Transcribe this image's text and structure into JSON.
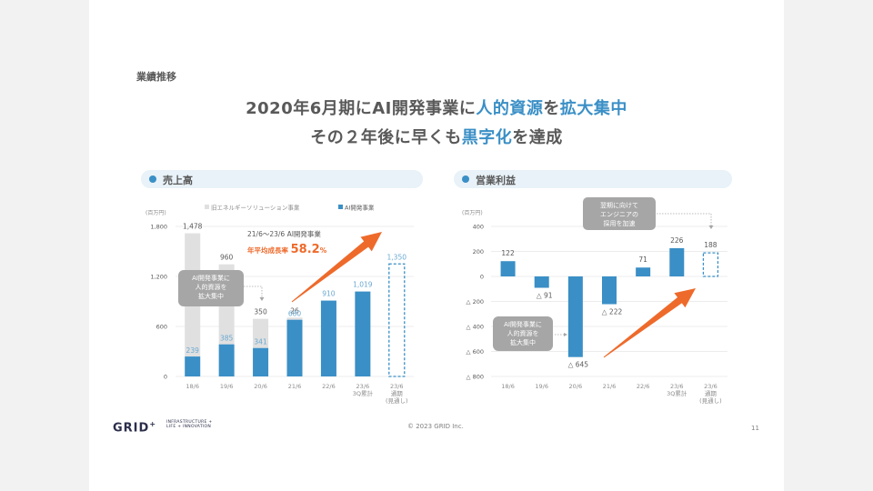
{
  "section_label": "業績推移",
  "headline": {
    "line1": [
      {
        "text": "2020年6月期にAI開発事業に",
        "highlight": false
      },
      {
        "text": "人的資源",
        "highlight": true
      },
      {
        "text": "を",
        "highlight": false
      },
      {
        "text": "拡大集中",
        "highlight": true
      }
    ],
    "line2": [
      {
        "text": "その２年後に早くも",
        "highlight": false
      },
      {
        "text": "黒字化",
        "highlight": true
      },
      {
        "text": "を達成",
        "highlight": false
      }
    ]
  },
  "colors": {
    "blue": "#3a8fc6",
    "grey_bar": "#e0e0e0",
    "orange": "#ee6a2b",
    "callout_bg": "#a6a6a6",
    "panel_header_bg": "#e8f2f8"
  },
  "panels": {
    "left_title": "売上高",
    "right_title": "営業利益"
  },
  "chart_data": [
    {
      "type": "bar",
      "stacked": true,
      "title": "売上高",
      "unit_label": "(百万円)",
      "categories": [
        "18/6",
        "19/6",
        "20/6",
        "21/6",
        "22/6",
        "23/6\n3Q累計",
        "23/6\n通期\n(見通し)"
      ],
      "series": [
        {
          "name": "AI開発事業",
          "values": [
            239,
            385,
            341,
            680,
            910,
            1019,
            1350
          ],
          "labels": [
            "239",
            "385",
            "341",
            "680",
            "910",
            "1,019",
            "1,350"
          ],
          "forecast_index": 6
        },
        {
          "name": "旧エネルギーソリューション事業",
          "values": [
            1478,
            960,
            350,
            26,
            0,
            0,
            0
          ],
          "labels": [
            "1,478",
            "960",
            "350",
            "26",
            "",
            "",
            ""
          ]
        }
      ],
      "yticks": [
        "0",
        "600",
        "1,200",
        "1,800"
      ],
      "ytick_values": [
        0,
        600,
        1200,
        1800
      ],
      "ylim": [
        0,
        1800
      ],
      "grid": true,
      "legend": [
        "旧エネルギーソリューション事業",
        "AI開発事業"
      ],
      "legend_position": "top",
      "annotations": {
        "callout": "AI開発事業に\n人的資源を\n拡大集中",
        "cagr_caption": "21/6〜23/6 AI開発事業",
        "cagr_label": "年平均成長率",
        "cagr_value": "58.2",
        "cagr_unit": "%"
      }
    },
    {
      "type": "bar",
      "title": "営業利益",
      "unit_label": "(百万円)",
      "categories": [
        "18/6",
        "19/6",
        "20/6",
        "21/6",
        "22/6",
        "23/6\n3Q累計",
        "23/6\n通期\n(見通し)"
      ],
      "series": [
        {
          "name": "営業利益",
          "values": [
            122,
            -91,
            -645,
            -222,
            71,
            226,
            188
          ],
          "labels": [
            "122",
            "△ 91",
            "△ 645",
            "△ 222",
            "71",
            "226",
            "188"
          ],
          "forecast_index": 6
        }
      ],
      "yticks": [
        "400",
        "200",
        "0",
        "△ 200",
        "△ 400",
        "△ 600",
        "△ 800"
      ],
      "ytick_values": [
        400,
        200,
        0,
        -200,
        -400,
        -600,
        -800
      ],
      "ylim": [
        -800,
        400
      ],
      "grid": true,
      "annotations": {
        "callout_left": "AI開発事業に\n人的資源を\n拡大集中",
        "callout_top": "翌期に向けて\nエンジニアの\n採用を加速"
      }
    }
  ],
  "footer": {
    "logo": "GRID",
    "logo_plus": "+",
    "tagline_1": "INFRASTRUCTURE +",
    "tagline_2": "LIFE + INNOVATION",
    "copyright": "© 2023 GRID Inc.",
    "page_number": "11"
  }
}
